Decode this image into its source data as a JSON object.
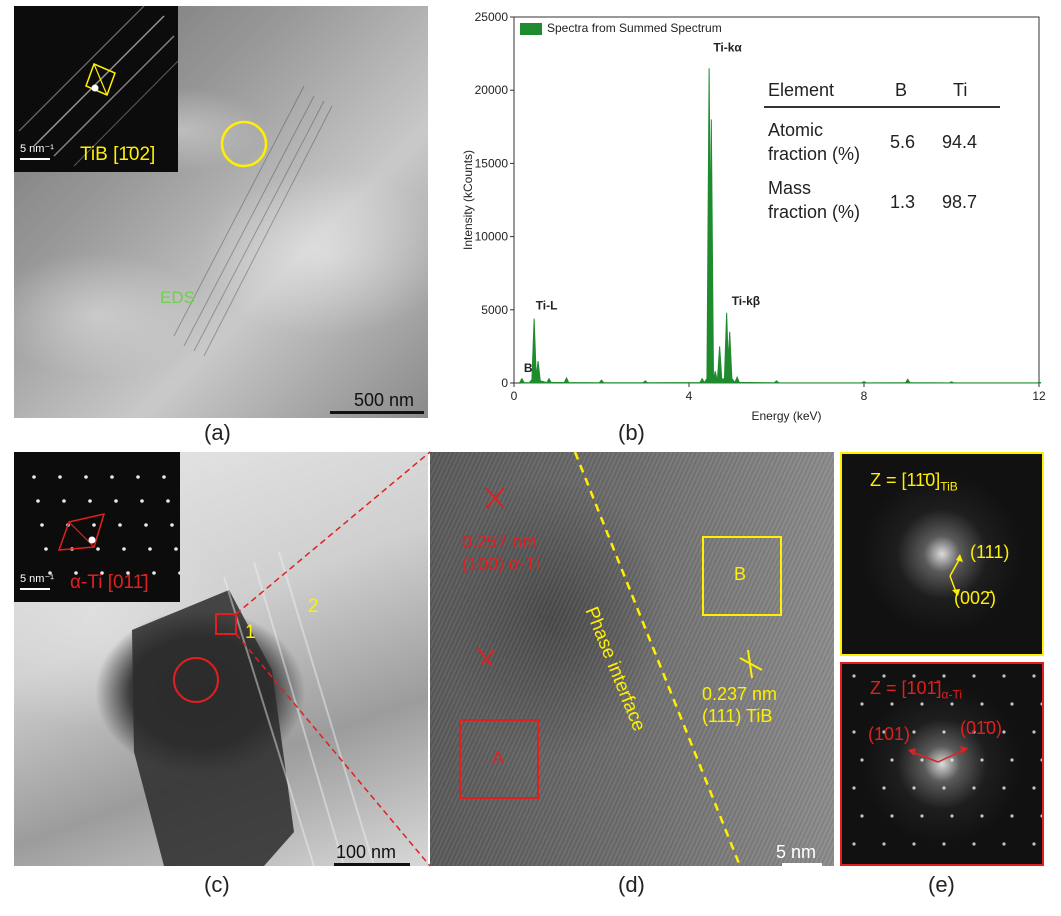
{
  "panel_a": {
    "caption": "(a)",
    "inset_label": "TiB [1̄02]",
    "inset_scale": "5 nm⁻¹",
    "eds_label": "EDS",
    "scale_bar": "500 nm",
    "colors": {
      "highlight": "#ffef00",
      "eds": "#6fd04a"
    }
  },
  "panel_b": {
    "caption": "(b)",
    "chart_data": {
      "type": "line",
      "legend": [
        "Spectra from Summed Spectrum"
      ],
      "xlabel": "Energy (keV)",
      "ylabel": "Intensity (kCounts)",
      "xlim": [
        0,
        12
      ],
      "ylim": [
        0,
        25000
      ],
      "xticks": [
        "0",
        "4",
        "8",
        "12"
      ],
      "yticks": [
        "0",
        "5000",
        "10000",
        "15000",
        "20000",
        "25000"
      ],
      "series": [
        {
          "name": "Spectra from Summed Spectrum",
          "x": [
            0.18,
            0.4,
            0.46,
            0.55,
            0.8,
            1.2,
            2.0,
            3.0,
            4.3,
            4.46,
            4.51,
            4.6,
            4.7,
            4.86,
            4.93,
            5.1,
            6.0,
            8.0,
            9.0,
            10.0,
            12.0
          ],
          "values": [
            300,
            200,
            4400,
            1500,
            300,
            350,
            200,
            150,
            300,
            21500,
            18000,
            800,
            2500,
            4800,
            3500,
            400,
            150,
            100,
            250,
            80,
            50
          ]
        }
      ],
      "annotations": [
        {
          "text": "B",
          "x": 0.18,
          "y": 600
        },
        {
          "text": "Ti-L",
          "x": 0.45,
          "y": 4900
        },
        {
          "text": "Ti-kα",
          "x": 4.51,
          "y": 22500
        },
        {
          "text": "Ti-kβ",
          "x": 4.93,
          "y": 5200
        }
      ],
      "color": "#1e8c2e",
      "table": {
        "headers": [
          "Element",
          "B",
          "Ti"
        ],
        "rows": [
          {
            "label": "Atomic fraction (%)",
            "label_line1": "Atomic",
            "label_line2": "fraction (%)",
            "b": "5.6",
            "ti": "94.4"
          },
          {
            "label": "Mass fraction (%)",
            "label_line1": "Mass",
            "label_line2": "fraction (%)",
            "b": "1.3",
            "ti": "98.7"
          }
        ]
      }
    }
  },
  "panel_c": {
    "caption": "(c)",
    "inset_label": "α-Ti [011̄]",
    "inset_scale": "5 nm⁻¹",
    "marker_1": "1",
    "marker_2": "2",
    "scale_bar": "100 nm",
    "colors": {
      "red": "#e02020",
      "yellow": "#ffef00"
    }
  },
  "panel_d": {
    "caption": "(d)",
    "spacing_red_1": "0.257 nm",
    "spacing_red_2": "(100) α-Ti",
    "phase_label": "Phase interface",
    "box_a": "A",
    "box_b": "B",
    "spacing_yel_1": "0.237 nm",
    "spacing_yel_2": "(111) TiB",
    "scale_bar": "5 nm"
  },
  "panel_e": {
    "caption": "(e)",
    "top_zone": "Z = [11̄0]",
    "top_zone_sub": "TiB",
    "top_spot_1": "(111)",
    "top_spot_2": "(002̄)",
    "bottom_zone": "Z = [101̄]",
    "bottom_zone_sub": "α-Ti",
    "bottom_spot_1": "(101)",
    "bottom_spot_2": "(01̄0)"
  }
}
